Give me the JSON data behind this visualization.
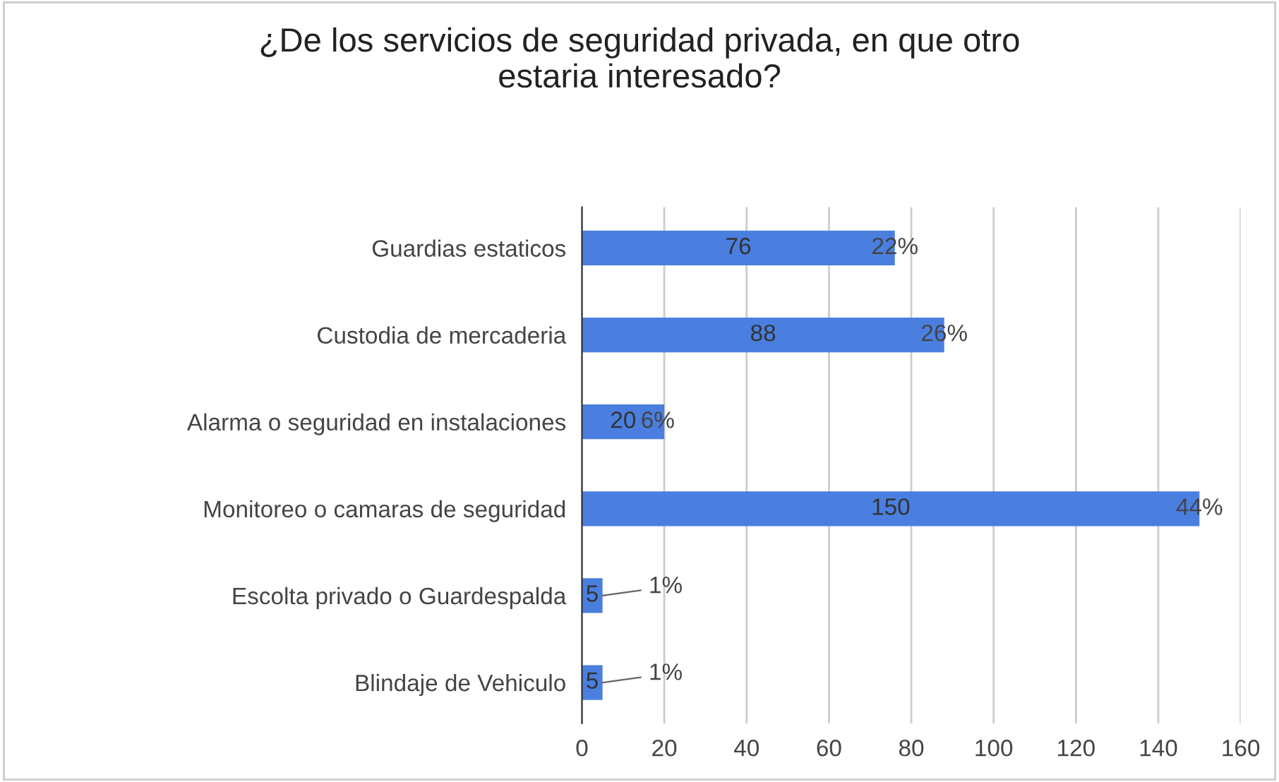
{
  "chart_data": {
    "type": "bar",
    "orientation": "horizontal",
    "title": "¿De los servicios de seguridad privada, en que otro\nestaria interesado?",
    "categories": [
      "Guardias estaticos",
      "Custodia de mercaderia",
      "Alarma o seguridad en instalaciones",
      "Monitoreo o camaras de seguridad",
      "Escolta privado o Guardespalda",
      "Blindaje de Vehiculo"
    ],
    "values": [
      76,
      88,
      20,
      150,
      5,
      5
    ],
    "color": "#4a7fe0",
    "data_labels": true,
    "annotations": [
      {
        "text": "22%",
        "x": 76,
        "y": "Guardias estaticos"
      },
      {
        "text": "26%",
        "x": 88,
        "y": "Custodia de mercaderia"
      },
      {
        "text": "6%",
        "x": 20,
        "y": "Alarma o seguridad en instalaciones"
      },
      {
        "text": "44%",
        "x": 150,
        "y": "Monitoreo o camaras de seguridad"
      },
      {
        "text": "1%",
        "x": 5,
        "y": "Escolta privado o Guardespalda"
      },
      {
        "text": "1%",
        "x": 5,
        "y": "Blindaje de Vehiculo"
      }
    ],
    "xlim": [
      0,
      160
    ],
    "xticks": [
      0,
      20,
      40,
      60,
      80,
      100,
      120,
      140,
      160
    ],
    "grid": "x",
    "legend": false
  }
}
